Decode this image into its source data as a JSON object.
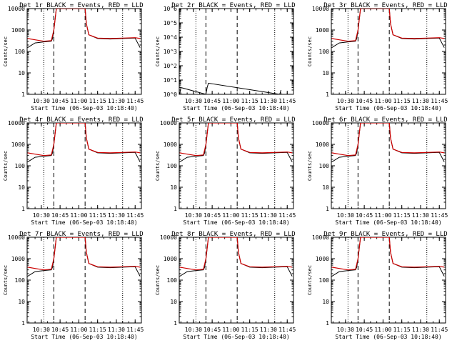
{
  "xlabel": "Start Time (06-Sep-03 10:18:40)",
  "ylabel": "Counts/sec",
  "x_tick_labels": [
    "10:30",
    "10:45",
    "11:00",
    "11:15",
    "11:30",
    "11:45"
  ],
  "colors": {
    "events": "#000000",
    "lld": "#cc0000",
    "background": "#ffffff"
  },
  "chart_data": [
    {
      "type": "line",
      "title": "Det 1r BLACK = Events, RED = LLD",
      "ylim": [
        1,
        10000
      ],
      "yscale": "log",
      "xlabel": "Start Time (06-Sep-03 10:18:40)",
      "ylabel": "Counts/sec",
      "y_tick_labels": [
        "1",
        "10",
        "100",
        "1000",
        "10000"
      ],
      "series": [
        {
          "name": "Events",
          "x": [
            "10:19",
            "10:25",
            "10:32",
            "10:38",
            "10:39",
            "10:40",
            "10:42",
            "10:45",
            "10:48",
            "11:05",
            "11:06",
            "11:08",
            "11:15",
            "11:25",
            "11:35",
            "11:45",
            "11:49"
          ],
          "y": [
            150,
            250,
            280,
            300,
            400,
            1000,
            10000,
            10000,
            10000,
            10000,
            2000,
            600,
            400,
            380,
            400,
            420,
            150
          ]
        },
        {
          "name": "LLD",
          "x": [
            "10:19",
            "10:25",
            "10:32",
            "10:38",
            "10:40",
            "10:42",
            "10:45",
            "10:48",
            "11:05",
            "11:06",
            "11:08",
            "11:15",
            "11:25",
            "11:35",
            "11:45",
            "11:49"
          ],
          "y": [
            400,
            350,
            300,
            320,
            1000,
            10000,
            10000,
            10000,
            10000,
            2000,
            600,
            420,
            400,
            420,
            440,
            400
          ]
        }
      ]
    },
    {
      "type": "line",
      "title": "Det 2r BLACK = Events, RED = LLD",
      "ylim": [
        1,
        1000000
      ],
      "yscale": "log",
      "xlabel": "Start Time (06-Sep-03 10:18:40)",
      "ylabel": "Counts/sec",
      "y_tick_labels": [
        "10^0",
        "10^1",
        "10^2",
        "10^3",
        "10^4",
        "10^5",
        "10^6"
      ],
      "series": [
        {
          "name": "Events",
          "x": [
            "10:19",
            "10:20",
            "10:40",
            "10:41",
            "10:42",
            "11:39",
            "11:40"
          ],
          "y": [
            1,
            3,
            1,
            3,
            6,
            1,
            2
          ]
        },
        {
          "name": "LLD",
          "x": [],
          "y": []
        }
      ]
    },
    {
      "type": "line",
      "title": "Det 3r BLACK = Events, RED = LLD",
      "ylim": [
        1,
        10000
      ],
      "yscale": "log",
      "xlabel": "Start Time (06-Sep-03 10:18:40)",
      "ylabel": "Counts/sec",
      "y_tick_labels": [
        "1",
        "10",
        "100",
        "1000",
        "10000"
      ],
      "series": [
        {
          "name": "Events",
          "x": [
            "10:19",
            "10:25",
            "10:32",
            "10:38",
            "10:39",
            "10:40",
            "10:42",
            "10:45",
            "10:48",
            "11:05",
            "11:06",
            "11:08",
            "11:15",
            "11:25",
            "11:35",
            "11:45",
            "11:49"
          ],
          "y": [
            150,
            250,
            280,
            300,
            400,
            1000,
            10000,
            10000,
            10000,
            10000,
            2000,
            600,
            400,
            380,
            400,
            420,
            150
          ]
        },
        {
          "name": "LLD",
          "x": [
            "10:19",
            "10:25",
            "10:32",
            "10:38",
            "10:40",
            "10:42",
            "10:45",
            "10:48",
            "11:05",
            "11:06",
            "11:08",
            "11:15",
            "11:25",
            "11:35",
            "11:45",
            "11:49"
          ],
          "y": [
            400,
            350,
            300,
            320,
            1000,
            10000,
            10000,
            10000,
            10000,
            2000,
            600,
            420,
            400,
            420,
            440,
            400
          ]
        }
      ]
    },
    {
      "type": "line",
      "title": "Det 4r BLACK = Events, RED = LLD",
      "ylim": [
        1,
        10000
      ],
      "yscale": "log",
      "xlabel": "Start Time (06-Sep-03 10:18:40)",
      "ylabel": "Counts/sec",
      "y_tick_labels": [
        "1",
        "10",
        "100",
        "1000",
        "10000"
      ],
      "series": [
        {
          "name": "Events",
          "x": [
            "10:19",
            "10:25",
            "10:32",
            "10:38",
            "10:39",
            "10:40",
            "10:42",
            "10:45",
            "10:48",
            "11:05",
            "11:06",
            "11:08",
            "11:15",
            "11:25",
            "11:35",
            "11:45",
            "11:49"
          ],
          "y": [
            150,
            250,
            280,
            300,
            400,
            1000,
            10000,
            10000,
            10000,
            10000,
            2000,
            600,
            400,
            380,
            400,
            420,
            150
          ]
        },
        {
          "name": "LLD",
          "x": [
            "10:19",
            "10:25",
            "10:32",
            "10:38",
            "10:40",
            "10:42",
            "10:45",
            "10:48",
            "11:05",
            "11:06",
            "11:08",
            "11:15",
            "11:25",
            "11:35",
            "11:45",
            "11:49"
          ],
          "y": [
            400,
            350,
            300,
            320,
            1000,
            10000,
            10000,
            10000,
            10000,
            2000,
            600,
            420,
            400,
            420,
            440,
            400
          ]
        }
      ]
    },
    {
      "type": "line",
      "title": "Det 5r BLACK = Events, RED = LLD",
      "ylim": [
        1,
        10000
      ],
      "yscale": "log",
      "xlabel": "Start Time (06-Sep-03 10:18:40)",
      "ylabel": "Counts/sec",
      "y_tick_labels": [
        "1",
        "10",
        "100",
        "1000",
        "10000"
      ],
      "series": [
        {
          "name": "Events",
          "x": [
            "10:19",
            "10:25",
            "10:32",
            "10:38",
            "10:39",
            "10:40",
            "10:42",
            "10:45",
            "10:48",
            "11:05",
            "11:06",
            "11:08",
            "11:15",
            "11:25",
            "11:35",
            "11:45",
            "11:49"
          ],
          "y": [
            150,
            250,
            280,
            300,
            400,
            1000,
            10000,
            10000,
            10000,
            10000,
            2000,
            600,
            400,
            380,
            400,
            420,
            150
          ]
        },
        {
          "name": "LLD",
          "x": [
            "10:19",
            "10:25",
            "10:32",
            "10:38",
            "10:40",
            "10:42",
            "10:45",
            "10:48",
            "11:05",
            "11:06",
            "11:08",
            "11:15",
            "11:25",
            "11:35",
            "11:45",
            "11:49"
          ],
          "y": [
            400,
            350,
            300,
            320,
            1000,
            10000,
            10000,
            10000,
            10000,
            2000,
            600,
            420,
            400,
            420,
            440,
            400
          ]
        }
      ]
    },
    {
      "type": "line",
      "title": "Det 6r BLACK = Events, RED = LLD",
      "ylim": [
        1,
        10000
      ],
      "yscale": "log",
      "xlabel": "Start Time (06-Sep-03 10:18:40)",
      "ylabel": "Counts/sec",
      "y_tick_labels": [
        "1",
        "10",
        "100",
        "1000",
        "10000"
      ],
      "series": [
        {
          "name": "Events",
          "x": [
            "10:19",
            "10:25",
            "10:32",
            "10:38",
            "10:39",
            "10:40",
            "10:42",
            "10:45",
            "10:48",
            "11:05",
            "11:06",
            "11:08",
            "11:15",
            "11:25",
            "11:35",
            "11:45",
            "11:49"
          ],
          "y": [
            150,
            250,
            280,
            300,
            400,
            1000,
            10000,
            10000,
            10000,
            10000,
            2000,
            600,
            400,
            380,
            400,
            420,
            150
          ]
        },
        {
          "name": "LLD",
          "x": [
            "10:19",
            "10:25",
            "10:32",
            "10:38",
            "10:40",
            "10:42",
            "10:45",
            "10:48",
            "11:05",
            "11:06",
            "11:08",
            "11:15",
            "11:25",
            "11:35",
            "11:45",
            "11:49"
          ],
          "y": [
            400,
            350,
            300,
            320,
            1000,
            10000,
            10000,
            10000,
            10000,
            2000,
            600,
            420,
            400,
            420,
            440,
            400
          ]
        }
      ]
    },
    {
      "type": "line",
      "title": "Det 7r BLACK = Events, RED = LLD",
      "ylim": [
        1,
        10000
      ],
      "yscale": "log",
      "xlabel": "Start Time (06-Sep-03 10:18:40)",
      "ylabel": "Counts/sec",
      "y_tick_labels": [
        "1",
        "10",
        "100",
        "1000",
        "10000"
      ],
      "series": [
        {
          "name": "Events",
          "x": [
            "10:19",
            "10:25",
            "10:32",
            "10:38",
            "10:39",
            "10:40",
            "10:42",
            "10:45",
            "10:48",
            "11:05",
            "11:06",
            "11:08",
            "11:15",
            "11:25",
            "11:35",
            "11:45",
            "11:49"
          ],
          "y": [
            150,
            250,
            280,
            300,
            400,
            1000,
            10000,
            10000,
            10000,
            10000,
            2000,
            600,
            400,
            380,
            400,
            420,
            150
          ]
        },
        {
          "name": "LLD",
          "x": [
            "10:19",
            "10:25",
            "10:32",
            "10:38",
            "10:40",
            "10:42",
            "10:45",
            "10:48",
            "11:05",
            "11:06",
            "11:08",
            "11:15",
            "11:25",
            "11:35",
            "11:45",
            "11:49"
          ],
          "y": [
            400,
            350,
            300,
            320,
            1000,
            10000,
            10000,
            10000,
            10000,
            2000,
            600,
            420,
            400,
            420,
            440,
            400
          ]
        }
      ]
    },
    {
      "type": "line",
      "title": "Det 8r BLACK = Events, RED = LLD",
      "ylim": [
        1,
        10000
      ],
      "yscale": "log",
      "xlabel": "Start Time (06-Sep-03 10:18:40)",
      "ylabel": "Counts/sec",
      "y_tick_labels": [
        "1",
        "10",
        "100",
        "1000",
        "10000"
      ],
      "series": [
        {
          "name": "Events",
          "x": [
            "10:19",
            "10:25",
            "10:32",
            "10:38",
            "10:39",
            "10:40",
            "10:42",
            "10:45",
            "10:48",
            "11:05",
            "11:06",
            "11:08",
            "11:15",
            "11:25",
            "11:35",
            "11:45",
            "11:49"
          ],
          "y": [
            150,
            250,
            280,
            300,
            400,
            1000,
            10000,
            10000,
            10000,
            10000,
            2000,
            600,
            400,
            380,
            400,
            420,
            150
          ]
        },
        {
          "name": "LLD",
          "x": [
            "10:19",
            "10:25",
            "10:32",
            "10:38",
            "10:40",
            "10:42",
            "10:45",
            "10:48",
            "11:05",
            "11:06",
            "11:08",
            "11:15",
            "11:25",
            "11:35",
            "11:45",
            "11:49"
          ],
          "y": [
            400,
            350,
            300,
            320,
            1000,
            10000,
            10000,
            10000,
            10000,
            2000,
            600,
            420,
            400,
            420,
            440,
            400
          ]
        }
      ]
    },
    {
      "type": "line",
      "title": "Det 9r BLACK = Events, RED = LLD",
      "ylim": [
        1,
        10000
      ],
      "yscale": "log",
      "xlabel": "Start Time (06-Sep-03 10:18:40)",
      "ylabel": "Counts/sec",
      "y_tick_labels": [
        "1",
        "10",
        "100",
        "1000",
        "10000"
      ],
      "series": [
        {
          "name": "Events",
          "x": [
            "10:19",
            "10:25",
            "10:32",
            "10:38",
            "10:39",
            "10:40",
            "10:42",
            "10:45",
            "10:48",
            "11:05",
            "11:06",
            "11:08",
            "11:15",
            "11:25",
            "11:35",
            "11:45",
            "11:49"
          ],
          "y": [
            150,
            250,
            280,
            300,
            400,
            1000,
            10000,
            10000,
            10000,
            10000,
            2000,
            600,
            400,
            380,
            400,
            420,
            150
          ]
        },
        {
          "name": "LLD",
          "x": [
            "10:19",
            "10:25",
            "10:32",
            "10:38",
            "10:40",
            "10:42",
            "10:45",
            "10:48",
            "11:05",
            "11:06",
            "11:08",
            "11:15",
            "11:25",
            "11:35",
            "11:45",
            "11:49"
          ],
          "y": [
            400,
            350,
            300,
            320,
            1000,
            10000,
            10000,
            10000,
            10000,
            2000,
            600,
            420,
            400,
            420,
            440,
            400
          ]
        }
      ]
    }
  ]
}
